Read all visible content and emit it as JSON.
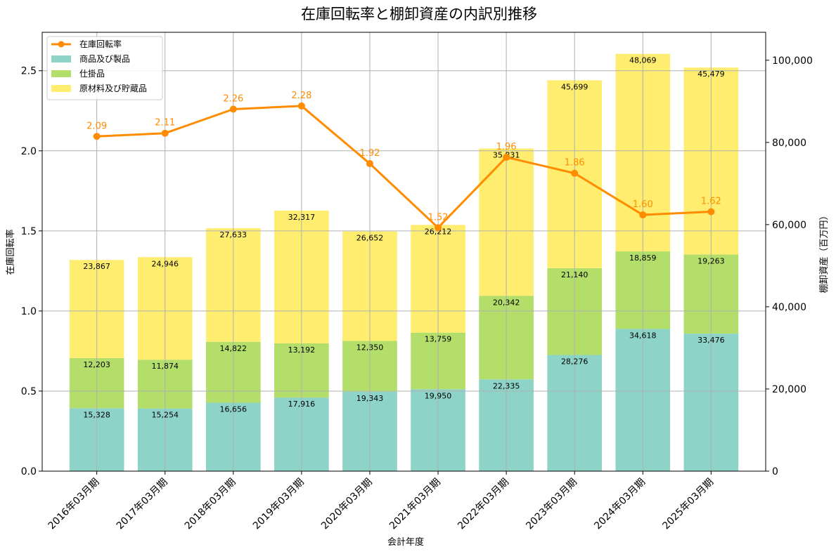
{
  "chart_data": {
    "type": "bar",
    "title": "在庫回転率と棚卸資産の内訳別推移",
    "xlabel": "会計年度",
    "ylabel_left": "在庫回転率",
    "ylabel_right": "棚卸資産（百万円）",
    "categories": [
      "2016年03月期",
      "2017年03月期",
      "2018年03月期",
      "2019年03月期",
      "2020年03月期",
      "2021年03月期",
      "2022年03月期",
      "2023年03月期",
      "2024年03月期",
      "2025年03月期"
    ],
    "ylim_left": [
      0,
      2.74
    ],
    "ylim_right": [
      0,
      106800
    ],
    "yticks_left": [
      "0.0",
      "0.5",
      "1.0",
      "1.5",
      "2.0",
      "2.5"
    ],
    "yticks_right": [
      "0",
      "20,000",
      "40,000",
      "60,000",
      "80,000",
      "100,000"
    ],
    "grid": true,
    "legend_position": "top-left",
    "series": [
      {
        "name": "商品及び製品",
        "kind": "stacked-bar",
        "axis": "right",
        "color": "#8dd3c7",
        "values": [
          15328,
          15254,
          16656,
          17916,
          19343,
          19950,
          22335,
          28276,
          34618,
          33476
        ],
        "labels": [
          "15,328",
          "15,254",
          "16,656",
          "17,916",
          "19,343",
          "19,950",
          "22,335",
          "28,276",
          "34,618",
          "33,476"
        ]
      },
      {
        "name": "仕掛品",
        "kind": "stacked-bar",
        "axis": "right",
        "color": "#b3de69",
        "values": [
          12203,
          11874,
          14822,
          13192,
          12350,
          13759,
          20342,
          21140,
          18859,
          19263
        ],
        "labels": [
          "12,203",
          "11,874",
          "14,822",
          "13,192",
          "12,350",
          "13,759",
          "20,342",
          "21,140",
          "18,859",
          "19,263"
        ]
      },
      {
        "name": "原材料及び貯蔵品",
        "kind": "stacked-bar",
        "axis": "right",
        "color": "#ffed6f",
        "values": [
          23867,
          24946,
          27633,
          32317,
          26652,
          26212,
          35831,
          45699,
          48069,
          45479
        ],
        "labels": [
          "23,867",
          "24,946",
          "27,633",
          "32,317",
          "26,652",
          "26,212",
          "35,831",
          "45,699",
          "48,069",
          "45,479"
        ]
      },
      {
        "name": "在庫回転率",
        "kind": "line",
        "axis": "left",
        "color": "#ff8c00",
        "values": [
          2.09,
          2.11,
          2.26,
          2.28,
          1.92,
          1.52,
          1.96,
          1.86,
          1.6,
          1.62
        ],
        "labels": [
          "2.09",
          "2.11",
          "2.26",
          "2.28",
          "1.92",
          "1.52",
          "1.96",
          "1.86",
          "1.60",
          "1.62"
        ]
      }
    ],
    "legend_order": [
      "在庫回転率",
      "商品及び製品",
      "仕掛品",
      "原材料及び貯蔵品"
    ]
  }
}
